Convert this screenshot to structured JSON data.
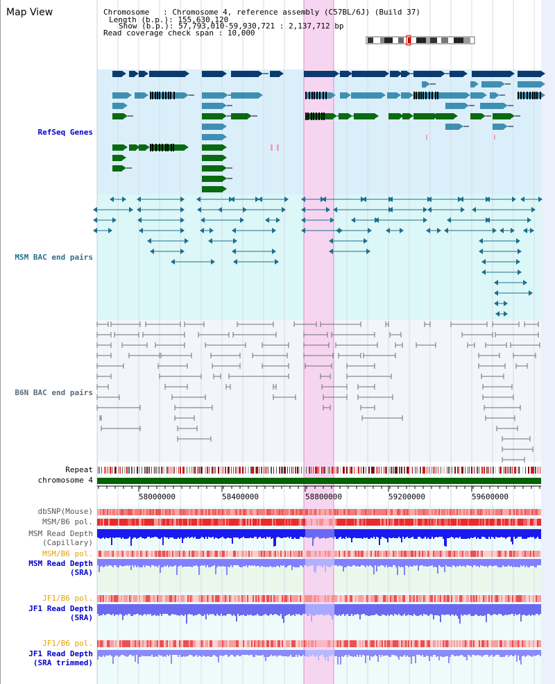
{
  "view": {
    "title": "Map View"
  },
  "header": {
    "chromosome_label": "Chromosome   ",
    "chromosome_value": ": Chromosome 4, reference assembly (C57BL/6J) (Build 37)",
    "length_label": "Length (b.p.)",
    "length_value": ": 155,630,120",
    "show_label": "Show (b.p.)",
    "show_value": ": 57,793,010-59,930,721 : 2,137,712 bp",
    "coverage_label": "Read coverage check span",
    "coverage_value": ": 10,000"
  },
  "tracks": {
    "refseq": "RefSeq Genes",
    "msm_bac": "MSM BAC end pairs",
    "b6n_bac": "B6N BAC end pairs",
    "repeat": "Repeat",
    "chromosome": "chromosome 4",
    "dbsnp": "dbSNP(Mouse)",
    "msm_b6_pol_1": "MSM/B6 pol.",
    "msm_depth_cap_1": "MSM Read Depth",
    "msm_depth_cap_2": "(Capillary)",
    "msm_b6_pol_2": "MSM/B6 pol.",
    "msm_depth_sra_1": "MSM Read Depth",
    "msm_depth_sra_2": "(SRA)",
    "jf1_b6_pol_1": "JF1/B6 pol.",
    "jf1_depth_sra_1": "JF1 Read Depth",
    "jf1_depth_sra_2": "(SRA)",
    "jf1_b6_pol_2": "JF1/B6 pol.",
    "jf1_depth_trim_1": "JF1 Read Depth",
    "jf1_depth_trim_2": "(SRA trimmed)"
  },
  "axis": {
    "ticks": [
      "58000000",
      "58400000",
      "58800000",
      "59200000",
      "59600000"
    ]
  },
  "colors": {
    "refseq_bg": "#dbeffa",
    "msm_bg": "#dcf7f7",
    "b6n_bg": "#f3f5fb",
    "highlight": "#f6d5f0",
    "gene_dark": "#0b3a6e",
    "gene_mid": "#3f8fb2",
    "gene_green": "#0a6a10",
    "bac_line": "#1e6e8c",
    "b6n_line": "#6e6e6e",
    "chromosome": "#006400",
    "pol_red": "#e83030",
    "depth_blue": "#1a1af0",
    "depth_light": "#8080ff",
    "label_blue": "#0000cc",
    "label_orange": "#e8a000",
    "label_teal": "#2a7090"
  }
}
